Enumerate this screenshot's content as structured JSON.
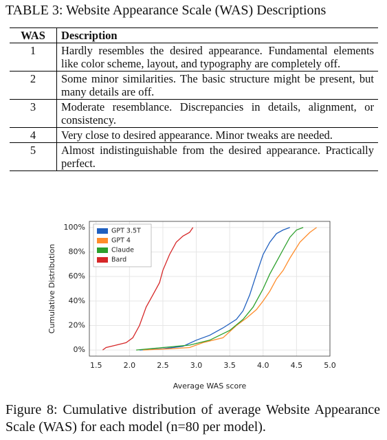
{
  "table": {
    "caption": "TABLE 3: Website Appearance Scale (WAS) Descriptions",
    "header": [
      "WAS",
      "Description"
    ],
    "rows": [
      [
        "1",
        "Hardly resembles the desired appearance. Fundamental elements like color scheme, layout, and typography are completely off."
      ],
      [
        "2",
        "Some minor similarities. The basic structure might be present, but many details are off."
      ],
      [
        "3",
        "Moderate resemblance. Discrepancies in details, alignment, or consistency."
      ],
      [
        "4",
        "Very close to desired appearance. Minor tweaks are needed."
      ],
      [
        "5",
        "Almost indistinguishable from the desired appearance. Practically perfect."
      ]
    ]
  },
  "chart_data": {
    "type": "line",
    "xlabel": "Average WAS score",
    "ylabel": "Cumulative Distribution",
    "xlim": [
      1.4,
      5.0
    ],
    "xticks": [
      1.5,
      {
        "value": 2.0,
        "label": "2.0"
      },
      2.5,
      {
        "value": 3.0,
        "label": "3.0"
      },
      3.5,
      {
        "value": 4.0,
        "label": "4.0"
      },
      4.5,
      {
        "value": 5.0,
        "label": "5.0"
      }
    ],
    "ylim": [
      -5,
      105
    ],
    "yticks": [
      {
        "value": 0,
        "label": "0%"
      },
      {
        "value": 20,
        "label": "20%"
      },
      {
        "value": 40,
        "label": "40%"
      },
      {
        "value": 60,
        "label": "60%"
      },
      {
        "value": 80,
        "label": "80%"
      },
      {
        "value": 100,
        "label": "100%"
      }
    ],
    "grid": true,
    "legend": "upper-left",
    "series": [
      {
        "name": "GPT 3.5T",
        "color": "#1f5fbf",
        "x": [
          2.15,
          2.5,
          2.8,
          3.0,
          3.2,
          3.4,
          3.6,
          3.7,
          3.8,
          3.9,
          4.0,
          4.1,
          4.2,
          4.3,
          4.4
        ],
        "values": [
          0,
          1,
          3,
          8,
          12,
          18,
          25,
          32,
          45,
          62,
          78,
          88,
          95,
          98,
          100
        ]
      },
      {
        "name": "GPT 4",
        "color": "#ff8c2a",
        "x": [
          2.2,
          2.6,
          2.9,
          3.1,
          3.4,
          3.6,
          3.75,
          3.9,
          4.0,
          4.1,
          4.2,
          4.3,
          4.4,
          4.55,
          4.7,
          4.8
        ],
        "values": [
          0,
          1,
          2,
          6,
          10,
          20,
          26,
          33,
          40,
          48,
          58,
          65,
          75,
          88,
          96,
          100
        ]
      },
      {
        "name": "Claude",
        "color": "#2ca02c",
        "x": [
          2.1,
          2.5,
          2.9,
          3.2,
          3.5,
          3.7,
          3.85,
          4.0,
          4.1,
          4.2,
          4.3,
          4.4,
          4.5,
          4.6
        ],
        "values": [
          0,
          2,
          4,
          8,
          16,
          25,
          35,
          50,
          62,
          72,
          82,
          92,
          98,
          100
        ]
      },
      {
        "name": "Bard",
        "color": "#d62728",
        "x": [
          1.6,
          1.65,
          1.8,
          1.95,
          2.05,
          2.15,
          2.25,
          2.35,
          2.45,
          2.5,
          2.6,
          2.7,
          2.8,
          2.9,
          2.95
        ],
        "values": [
          0,
          2,
          4,
          6,
          10,
          20,
          35,
          45,
          55,
          65,
          78,
          88,
          93,
          96,
          100
        ]
      }
    ]
  },
  "figure_caption": "Figure 8: Cumulative distribution of average Website Appearance Scale (WAS) for each model (n=80 per model)."
}
